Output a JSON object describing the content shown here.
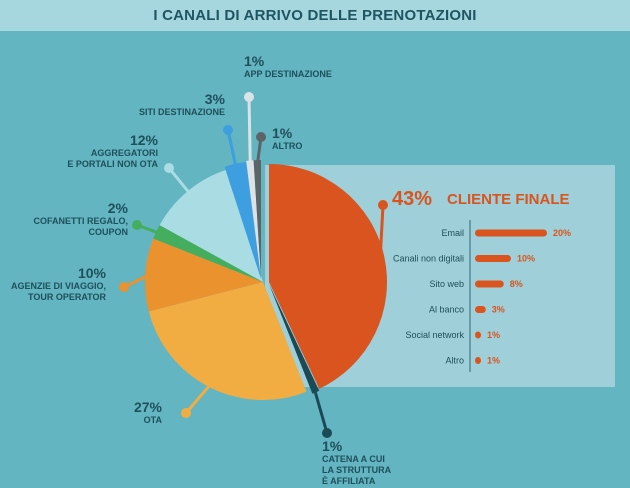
{
  "title": "I CANALI DI ARRIVO DELLE PRENOTAZIONI",
  "colors": {
    "background": "#62b5c1",
    "title_band": "#a6d6de",
    "panel": "#9fcfd8",
    "text": "#1f4f5a",
    "accent": "#d9541e"
  },
  "chart_data": [
    {
      "type": "pie",
      "slices": [
        {
          "value": 43,
          "display": "43%",
          "label": "CLIENTE FINALE",
          "color": "#d9541e"
        },
        {
          "value": 1,
          "display": "1%",
          "label": "CATENA A CUI LA STRUTTURA È AFFILIATA",
          "label_lines": [
            "CATENA A CUI",
            "LA STRUTTURA",
            "È AFFILIATA"
          ],
          "color": "#1b4a57"
        },
        {
          "value": 27,
          "display": "27%",
          "label": "OTA",
          "label_lines": [
            "OTA"
          ],
          "color": "#f2ad42"
        },
        {
          "value": 10,
          "display": "10%",
          "label": "AGENZIE DI VIAGGIO, TOUR OPERATOR",
          "label_lines": [
            "AGENZIE DI VIAGGIO,",
            "TOUR OPERATOR"
          ],
          "color": "#e9922e"
        },
        {
          "value": 2,
          "display": "2%",
          "label": "COFANETTI REGALO, COUPON",
          "label_lines": [
            "COFANETTI REGALO,",
            "COUPON"
          ],
          "color": "#44ad5e"
        },
        {
          "value": 12,
          "display": "12%",
          "label": "AGGREGATORI E PORTALI NON OTA",
          "label_lines": [
            "AGGREGATORI",
            "E PORTALI NON OTA"
          ],
          "color": "#a9dce3"
        },
        {
          "value": 3,
          "display": "3%",
          "label": "SITI DESTINAZIONE",
          "label_lines": [
            "SITI DESTINAZIONE"
          ],
          "color": "#3e9fe0"
        },
        {
          "value": 1,
          "display": "1%",
          "label": "APP DESTINAZIONE",
          "label_lines": [
            "APP DESTINAZIONE"
          ],
          "color": "#dbe3e6"
        },
        {
          "value": 1,
          "display": "1%",
          "label": "ALTRO",
          "label_lines": [
            "ALTRO"
          ],
          "color": "#5d6468"
        }
      ]
    },
    {
      "type": "bar",
      "orientation": "horizontal",
      "title": "CLIENTE FINALE",
      "title_value": "43%",
      "categories": [
        "Email",
        "Canali non digitali",
        "Sito web",
        "Al banco",
        "Social network",
        "Altro"
      ],
      "values": [
        20,
        10,
        8,
        3,
        1,
        1
      ],
      "value_labels": [
        "20%",
        "10%",
        "8%",
        "3%",
        "1%",
        "1%"
      ],
      "color": "#d9541e"
    }
  ]
}
